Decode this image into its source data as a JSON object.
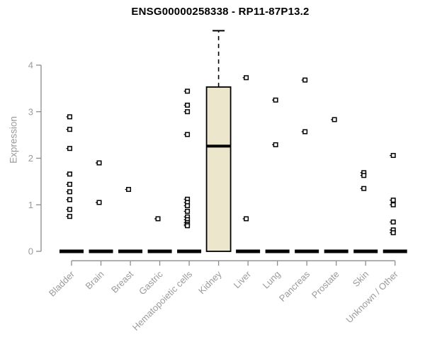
{
  "chart_data": {
    "type": "boxplot",
    "title": "ENSG00000258338 - RP11-87P13.2",
    "ylabel": "Expression",
    "xlabel": "",
    "ylim": [
      0,
      4.9
    ],
    "yticks": [
      0,
      1,
      2,
      3,
      4
    ],
    "grid": false,
    "legend": "none",
    "colors": {
      "box_fill": "#ebe6cc",
      "box_stroke": "#000000",
      "axis_line": "#8c8c8c",
      "tick_text": "#9b9b9b",
      "title_text": "#000000",
      "point": "#000000"
    },
    "categories": [
      "Bladder",
      "Brain",
      "Breast",
      "Gastric",
      "Hematopoietic cells",
      "Kidney",
      "Liver",
      "Lung",
      "Pancreas",
      "Prostate",
      "Skin",
      "Unknown / Other"
    ],
    "boxes": [
      {
        "category": "Bladder",
        "whisker_low": 0,
        "q1": 0,
        "median": 0,
        "q3": 0,
        "whisker_high": 0,
        "outliers": [
          2.89,
          2.62,
          2.21,
          1.66,
          1.44,
          1.28,
          1.11,
          0.9,
          0.75
        ]
      },
      {
        "category": "Brain",
        "whisker_low": 0,
        "q1": 0,
        "median": 0,
        "q3": 0,
        "whisker_high": 0,
        "outliers": [
          1.9,
          1.05
        ]
      },
      {
        "category": "Breast",
        "whisker_low": 0,
        "q1": 0,
        "median": 0,
        "q3": 0,
        "whisker_high": 0,
        "outliers": [
          1.33
        ]
      },
      {
        "category": "Gastric",
        "whisker_low": 0,
        "q1": 0,
        "median": 0,
        "q3": 0,
        "whisker_high": 0,
        "outliers": [
          0.7
        ]
      },
      {
        "category": "Hematopoietic cells",
        "whisker_low": 0,
        "q1": 0,
        "median": 0,
        "q3": 0,
        "whisker_high": 0,
        "outliers": [
          3.44,
          3.14,
          3.0,
          2.51,
          1.12,
          1.05,
          0.98,
          0.86,
          0.74,
          0.68,
          0.62,
          0.58,
          0.55
        ]
      },
      {
        "category": "Kidney",
        "whisker_low": 0,
        "q1": 0,
        "median": 2.26,
        "q3": 3.53,
        "whisker_high": 4.74,
        "outliers": []
      },
      {
        "category": "Liver",
        "whisker_low": 0,
        "q1": 0,
        "median": 0,
        "q3": 0,
        "whisker_high": 0,
        "outliers": [
          3.73,
          0.7
        ]
      },
      {
        "category": "Lung",
        "whisker_low": 0,
        "q1": 0,
        "median": 0,
        "q3": 0,
        "whisker_high": 0,
        "outliers": [
          3.25,
          2.29
        ]
      },
      {
        "category": "Pancreas",
        "whisker_low": 0,
        "q1": 0,
        "median": 0,
        "q3": 0,
        "whisker_high": 0,
        "outliers": [
          3.68,
          2.57
        ]
      },
      {
        "category": "Prostate",
        "whisker_low": 0,
        "q1": 0,
        "median": 0,
        "q3": 0,
        "whisker_high": 0,
        "outliers": [
          2.83
        ]
      },
      {
        "category": "Skin",
        "whisker_low": 0,
        "q1": 0,
        "median": 0,
        "q3": 0,
        "whisker_high": 0,
        "outliers": [
          1.69,
          1.63,
          1.35
        ]
      },
      {
        "category": "Unknown / Other",
        "whisker_low": 0,
        "q1": 0,
        "median": 0,
        "q3": 0,
        "whisker_high": 0,
        "outliers": [
          2.06,
          1.1,
          1.0,
          0.63,
          0.46,
          0.4
        ]
      }
    ]
  }
}
